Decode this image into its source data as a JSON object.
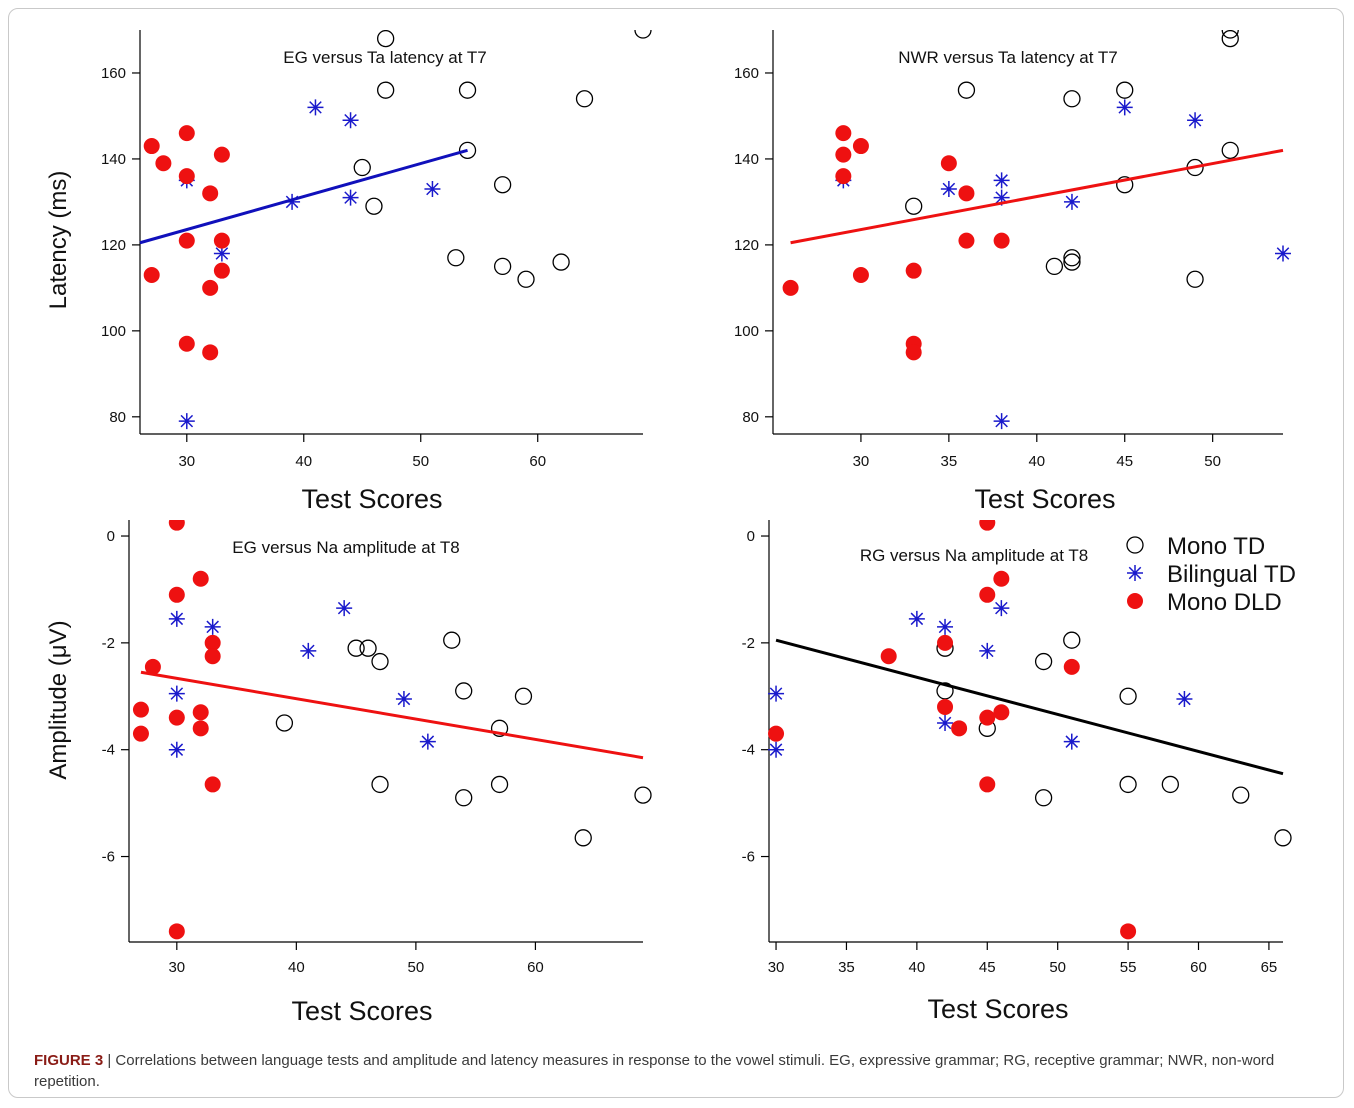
{
  "caption": {
    "label": "FIGURE 3",
    "separator": " | ",
    "text": "Correlations between language tests and amplitude and latency measures in response to the vowel stimuli. EG, expressive grammar; RG, receptive grammar; NWR, non-word repetition."
  },
  "legend": {
    "placement": "top-right of lower-right panel",
    "entries": [
      {
        "label": "Mono TD",
        "marker": "open-circle",
        "color": "#000000"
      },
      {
        "label": "Bilingual TD",
        "marker": "asterisk",
        "color": "#1a1acc"
      },
      {
        "label": "Mono DLD",
        "marker": "filled-circle",
        "color": "#ee1111"
      }
    ]
  },
  "chart_data": [
    {
      "type": "scatter",
      "title": "EG versus Ta latency at T7",
      "xlabel": "Test Scores",
      "ylabel": "Latency (ms)",
      "xlim": [
        26,
        69
      ],
      "ylim": [
        76,
        170
      ],
      "xticks": [
        30,
        40,
        50,
        60
      ],
      "yticks": [
        80,
        100,
        120,
        140,
        160
      ],
      "grid": false,
      "fit": {
        "x": [
          26,
          54
        ],
        "y": [
          120.5,
          142
        ],
        "color": "#1010bb"
      },
      "series": [
        {
          "name": "Mono TD",
          "marker": "open-circle",
          "color": "#000000",
          "x": [
            47,
            47,
            54,
            64,
            69,
            54,
            45,
            46,
            57,
            53,
            57,
            59,
            62
          ],
          "y": [
            168,
            156,
            156,
            154,
            170,
            142,
            138,
            129,
            134,
            117,
            115,
            112,
            116
          ]
        },
        {
          "name": "Bilingual TD",
          "marker": "asterisk",
          "color": "#1a1acc",
          "x": [
            41,
            44,
            30,
            39,
            44,
            51,
            33,
            30
          ],
          "y": [
            152,
            149,
            135,
            130,
            131,
            133,
            118,
            79
          ]
        },
        {
          "name": "Mono DLD",
          "marker": "filled-circle",
          "color": "#ee1111",
          "x": [
            27,
            28,
            30,
            30,
            32,
            33,
            30,
            33,
            33,
            27,
            32,
            30,
            32
          ],
          "y": [
            143,
            139,
            146,
            136,
            132,
            141,
            121,
            121,
            114,
            113,
            110,
            97,
            95
          ]
        }
      ]
    },
    {
      "type": "scatter",
      "title": "NWR versus Ta latency at T7",
      "xlabel": "Test Scores",
      "ylabel": "",
      "xlim": [
        25,
        54
      ],
      "ylim": [
        76,
        170
      ],
      "xticks": [
        30,
        35,
        40,
        45,
        50
      ],
      "yticks": [
        80,
        100,
        120,
        140,
        160
      ],
      "grid": false,
      "fit": {
        "x": [
          26,
          54
        ],
        "y": [
          120.5,
          142
        ],
        "color": "#ee1111"
      },
      "series": [
        {
          "name": "Mono TD",
          "marker": "open-circle",
          "color": "#000000",
          "x": [
            36,
            42,
            45,
            51,
            51,
            51,
            49,
            45,
            33,
            42,
            42,
            41,
            49
          ],
          "y": [
            156,
            154,
            156,
            170,
            168,
            142,
            138,
            134,
            129,
            117,
            116,
            115,
            112
          ]
        },
        {
          "name": "Bilingual TD",
          "marker": "asterisk",
          "color": "#1a1acc",
          "x": [
            45,
            49,
            29,
            35,
            38,
            38,
            42,
            54,
            38
          ],
          "y": [
            152,
            149,
            135,
            133,
            135,
            131,
            130,
            118,
            79
          ]
        },
        {
          "name": "Mono DLD",
          "marker": "filled-circle",
          "color": "#ee1111",
          "x": [
            29,
            29,
            30,
            29,
            35,
            36,
            36,
            38,
            30,
            33,
            26,
            33,
            33
          ],
          "y": [
            146,
            141,
            143,
            136,
            139,
            132,
            121,
            121,
            113,
            114,
            110,
            97,
            95
          ]
        }
      ]
    },
    {
      "type": "scatter",
      "title": "EG versus Na amplitude at T8",
      "xlabel": "Test Scores",
      "ylabel": "Amplitude (μV)",
      "xlim": [
        26,
        69
      ],
      "ylim": [
        -7.6,
        0.3
      ],
      "xticks": [
        30,
        40,
        50,
        60
      ],
      "yticks": [
        0,
        -2,
        -4,
        -6
      ],
      "grid": false,
      "fit": {
        "x": [
          27,
          69
        ],
        "y": [
          -2.55,
          -4.15
        ],
        "color": "#ee1111"
      },
      "series": [
        {
          "name": "Mono TD",
          "marker": "open-circle",
          "color": "#000000",
          "x": [
            45,
            46,
            47,
            53,
            54,
            59,
            39,
            57,
            47,
            54,
            57,
            69,
            64
          ],
          "y": [
            -2.1,
            -2.1,
            -2.35,
            -1.95,
            -2.9,
            -3.0,
            -3.5,
            -3.6,
            -4.65,
            -4.9,
            -4.65,
            -4.85,
            -5.65
          ]
        },
        {
          "name": "Bilingual TD",
          "marker": "asterisk",
          "color": "#1a1acc",
          "x": [
            30,
            33,
            44,
            41,
            49,
            30,
            51,
            30
          ],
          "y": [
            -1.55,
            -1.7,
            -1.35,
            -2.15,
            -3.05,
            -2.95,
            -3.85,
            -4.0
          ]
        },
        {
          "name": "Mono DLD",
          "marker": "filled-circle",
          "color": "#ee1111",
          "x": [
            30,
            30,
            32,
            33,
            33,
            28,
            27,
            27,
            30,
            32,
            32,
            33,
            30
          ],
          "y": [
            0.25,
            -1.1,
            -0.8,
            -2.0,
            -2.25,
            -2.45,
            -3.25,
            -3.7,
            -3.4,
            -3.3,
            -3.6,
            -4.65,
            -7.4
          ]
        }
      ]
    },
    {
      "type": "scatter",
      "title": "RG versus Na amplitude at T8",
      "xlabel": "Test Scores",
      "ylabel": "",
      "xlim": [
        29.5,
        66
      ],
      "ylim": [
        -7.6,
        0.3
      ],
      "xticks": [
        30,
        35,
        40,
        45,
        50,
        55,
        60,
        65
      ],
      "yticks": [
        0,
        -2,
        -4,
        -6
      ],
      "grid": false,
      "fit": {
        "x": [
          30,
          66
        ],
        "y": [
          -1.95,
          -4.45
        ],
        "color": "#000000"
      },
      "series": [
        {
          "name": "Mono TD",
          "marker": "open-circle",
          "color": "#000000",
          "x": [
            42,
            51,
            49,
            42,
            55,
            45,
            49,
            55,
            58,
            63,
            66
          ],
          "y": [
            -2.1,
            -1.95,
            -2.35,
            -2.9,
            -3.0,
            -3.6,
            -4.9,
            -4.65,
            -4.65,
            -4.85,
            -5.65
          ]
        },
        {
          "name": "Bilingual TD",
          "marker": "asterisk",
          "color": "#1a1acc",
          "x": [
            40,
            42,
            46,
            45,
            30,
            59,
            42,
            51,
            30
          ],
          "y": [
            -1.55,
            -1.7,
            -1.35,
            -2.15,
            -2.95,
            -3.05,
            -3.5,
            -3.85,
            -4.0
          ]
        },
        {
          "name": "Mono DLD",
          "marker": "filled-circle",
          "color": "#ee1111",
          "x": [
            45,
            46,
            45,
            42,
            38,
            51,
            42,
            46,
            45,
            43,
            30,
            45,
            55
          ],
          "y": [
            0.25,
            -0.8,
            -1.1,
            -2.0,
            -2.25,
            -2.45,
            -3.2,
            -3.3,
            -3.4,
            -3.6,
            -3.7,
            -4.65,
            -7.4
          ]
        }
      ]
    }
  ]
}
